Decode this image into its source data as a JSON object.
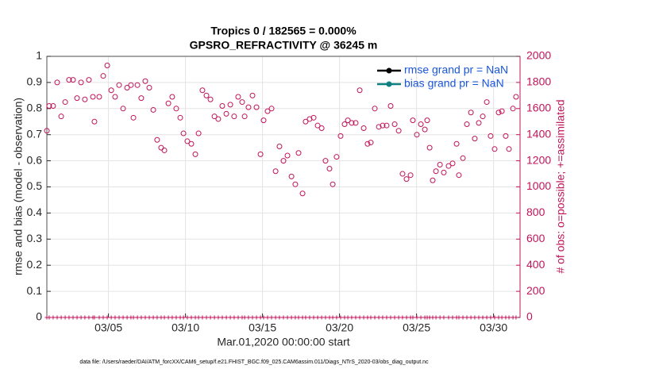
{
  "chart_data": {
    "type": "scatter",
    "title": "Tropics 0 / 182565 = 0.000%",
    "subtitle": "GPSRO_REFRACTIVITY @ 36245 m",
    "x_label": "Mar.01,2020 00:00:00 start",
    "y_label": "rmse and bias (model - observation)",
    "y2_label": "# of obs: o=possible; +=assimilated",
    "footnote": "data file: /Users/raeder/DAI/ATM_forcXX/CAM6_setup/f.e21.FHIST_BGC.f09_025.CAM6assim.011/Diags_NTrS_2020-03/obs_diag_output.nc",
    "legend": [
      {
        "name": "rmse grand pr = NaN",
        "color": "#000000"
      },
      {
        "name": "bias grand pr = NaN",
        "color": "#0f8080"
      }
    ],
    "legend_position": "upper right",
    "grid": true,
    "xlim": [
      0,
      30.72
    ],
    "xticks": [
      {
        "value": 4,
        "label": "03/05"
      },
      {
        "value": 9,
        "label": "03/10"
      },
      {
        "value": 14,
        "label": "03/15"
      },
      {
        "value": 19,
        "label": "03/20"
      },
      {
        "value": 24,
        "label": "03/25"
      },
      {
        "value": 29,
        "label": "03/30"
      }
    ],
    "ylim": [
      0,
      1
    ],
    "yticks": [
      0,
      0.1,
      0.2,
      0.3,
      0.4,
      0.5,
      0.6,
      0.7,
      0.8,
      0.9,
      1
    ],
    "y2lim": [
      0,
      2000
    ],
    "y2ticks": [
      0,
      200,
      400,
      600,
      800,
      1000,
      1200,
      1400,
      1600,
      1800,
      2000
    ],
    "x": [
      0,
      0.15,
      0.41,
      0.67,
      0.93,
      1.19,
      1.44,
      1.7,
      1.96,
      2.22,
      2.47,
      2.73,
      2.99,
      3.09,
      3.4,
      3.66,
      3.92,
      4.18,
      4.43,
      4.69,
      4.95,
      5.21,
      5.46,
      5.62,
      5.88,
      6.13,
      6.39,
      6.65,
      6.91,
      7.16,
      7.42,
      7.63,
      7.89,
      8.14,
      8.4,
      8.66,
      8.87,
      9.12,
      9.38,
      9.64,
      9.85,
      10.1,
      10.36,
      10.62,
      10.88,
      11.13,
      11.39,
      11.65,
      11.91,
      12.16,
      12.42,
      12.68,
      12.84,
      13.09,
      13.35,
      13.61,
      13.87,
      14.07,
      14.33,
      14.59,
      14.85,
      15.1,
      15.36,
      15.62,
      15.88,
      16.13,
      16.34,
      16.6,
      16.8,
      17.06,
      17.32,
      17.58,
      17.84,
      18.09,
      18.35,
      18.56,
      18.81,
      19.07,
      19.33,
      19.54,
      19.79,
      20.05,
      20.31,
      20.57,
      20.82,
      21.03,
      21.29,
      21.55,
      21.8,
      22.06,
      22.32,
      22.58,
      22.84,
      23.09,
      23.35,
      23.61,
      23.76,
      24.02,
      24.28,
      24.54,
      24.69,
      24.85,
      25.05,
      25.26,
      25.52,
      25.77,
      26.08,
      26.34,
      26.6,
      26.75,
      27.01,
      27.27,
      27.53,
      27.78,
      28.04,
      28.3,
      28.56,
      28.81,
      29.07,
      29.33,
      29.54,
      29.79,
      30.0,
      30.26,
      30.46
    ],
    "series": [
      {
        "color": "#c0145a",
        "marker": "circle",
        "axis": "y2",
        "values": [
          1430,
          1620,
          1620,
          1800,
          1540,
          1650,
          1820,
          1820,
          1680,
          1800,
          1670,
          1820,
          1690,
          1500,
          1690,
          1850,
          1930,
          1740,
          1690,
          1780,
          1600,
          1760,
          1780,
          1530,
          1780,
          1680,
          1810,
          1760,
          1590,
          1360,
          1300,
          1280,
          1640,
          1690,
          1600,
          1530,
          1410,
          1350,
          1330,
          1250,
          1410,
          1740,
          1700,
          1670,
          1540,
          1520,
          1620,
          1560,
          1630,
          1540,
          1690,
          1650,
          1540,
          1610,
          1700,
          1610,
          1250,
          1510,
          1580,
          1600,
          1120,
          1310,
          1200,
          1240,
          1080,
          1020,
          1260,
          950,
          1500,
          1520,
          1530,
          1470,
          1450,
          1200,
          1140,
          1020,
          1230,
          1390,
          1480,
          1510,
          1490,
          1490,
          1740,
          1450,
          1330,
          1340,
          1600,
          1460,
          1470,
          1470,
          1620,
          1480,
          1430,
          1100,
          1060,
          1090,
          1510,
          1400,
          1480,
          1440,
          1510,
          1300,
          1050,
          1120,
          1170,
          1110,
          1160,
          1180,
          1330,
          1090,
          1220,
          1480,
          1570,
          1370,
          1490,
          1540,
          1650,
          1390,
          1290,
          1570,
          1580,
          1390,
          1290,
          1600,
          1690
        ]
      },
      {
        "color": "#c0145a",
        "marker": "plus",
        "axis": "y2",
        "values": [
          0,
          0,
          0,
          0,
          0,
          0,
          0,
          0,
          0,
          0,
          0,
          0,
          0,
          0,
          0,
          0,
          0,
          0,
          0,
          0,
          0,
          0,
          0,
          0,
          0,
          0,
          0,
          0,
          0,
          0,
          0,
          0,
          0,
          0,
          0,
          0,
          0,
          0,
          0,
          0,
          0,
          0,
          0,
          0,
          0,
          0,
          0,
          0,
          0,
          0,
          0,
          0,
          0,
          0,
          0,
          0,
          0,
          0,
          0,
          0,
          0,
          0,
          0,
          0,
          0,
          0,
          0,
          0,
          0,
          0,
          0,
          0,
          0,
          0,
          0,
          0,
          0,
          0,
          0,
          0,
          0,
          0,
          0,
          0,
          0,
          0,
          0,
          0,
          0,
          0,
          0,
          0,
          0,
          0,
          0,
          0,
          0,
          0,
          0,
          0,
          0,
          0,
          0,
          0,
          0,
          0,
          0,
          0,
          0,
          0,
          0,
          0,
          0,
          0,
          0,
          0,
          0,
          0,
          0,
          0,
          0,
          0,
          0,
          0,
          0
        ]
      }
    ]
  }
}
